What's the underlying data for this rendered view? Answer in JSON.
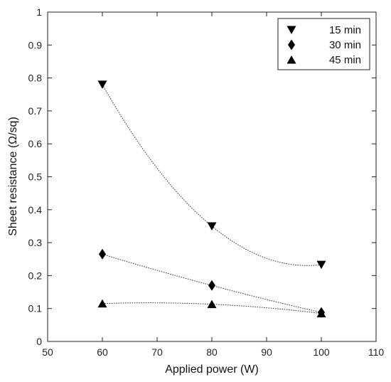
{
  "chart_data": {
    "type": "scatter",
    "title": "",
    "xlabel": "Applied power (W)",
    "ylabel": "Sheet resistance (Ω/sq)",
    "xlim": [
      50,
      110
    ],
    "ylim": [
      0,
      1
    ],
    "xticks": [
      50,
      60,
      70,
      80,
      90,
      100,
      110
    ],
    "yticks": [
      0,
      0.1,
      0.2,
      0.3,
      0.4,
      0.5,
      0.6,
      0.7,
      0.8,
      0.9,
      1
    ],
    "ytick_labels": [
      "0",
      "0.1",
      "0.2",
      "0.3",
      "0.4",
      "0.5",
      "0.6",
      "0.7",
      "0.8",
      "0.9",
      "1"
    ],
    "grid": false,
    "legend_position": "top-right",
    "fit_curves": "dotted smooth curve through each series",
    "series": [
      {
        "name": "15 min",
        "marker": "triangle-down",
        "x": [
          60,
          80,
          100
        ],
        "y": [
          0.78,
          0.35,
          0.233
        ]
      },
      {
        "name": "30 min",
        "marker": "diamond",
        "x": [
          60,
          80,
          100
        ],
        "y": [
          0.265,
          0.17,
          0.088
        ]
      },
      {
        "name": "45 min",
        "marker": "triangle-up",
        "x": [
          60,
          80,
          100
        ],
        "y": [
          0.115,
          0.113,
          0.085
        ]
      }
    ]
  }
}
